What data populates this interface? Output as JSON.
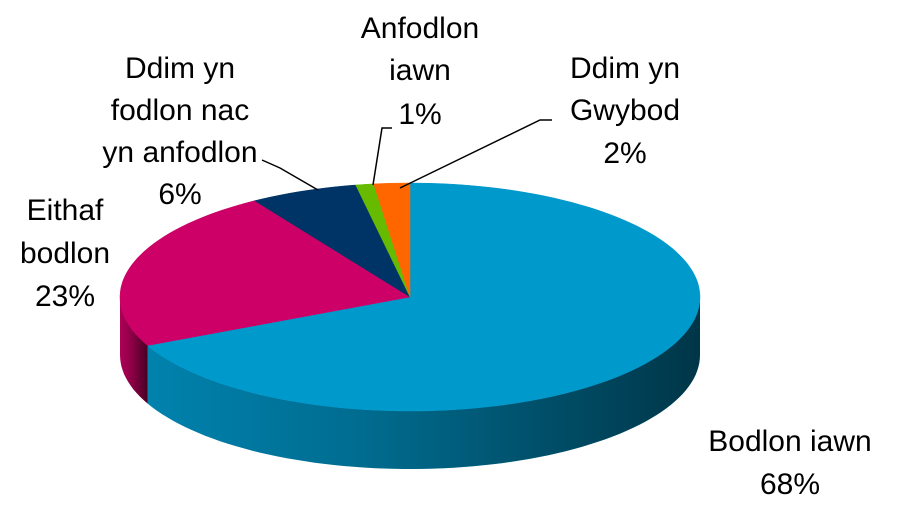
{
  "chart_data": {
    "type": "pie3d",
    "categories": [
      [
        "Bodlon iawn"
      ],
      [
        "Eithaf",
        "bodlon"
      ],
      [
        "Ddim yn",
        "fodlon nac",
        "yn anfodlon"
      ],
      [
        "Anfodlon",
        "iawn"
      ],
      [
        "Ddim yn",
        "Gwybod"
      ]
    ],
    "values": [
      68,
      23,
      6,
      1,
      2
    ],
    "value_labels": [
      "68%",
      "23%",
      "6%",
      "1%",
      "2%"
    ],
    "colors": [
      "#0099cc",
      "#cc0066",
      "#003366",
      "#66bb00",
      "#ff6600"
    ]
  }
}
